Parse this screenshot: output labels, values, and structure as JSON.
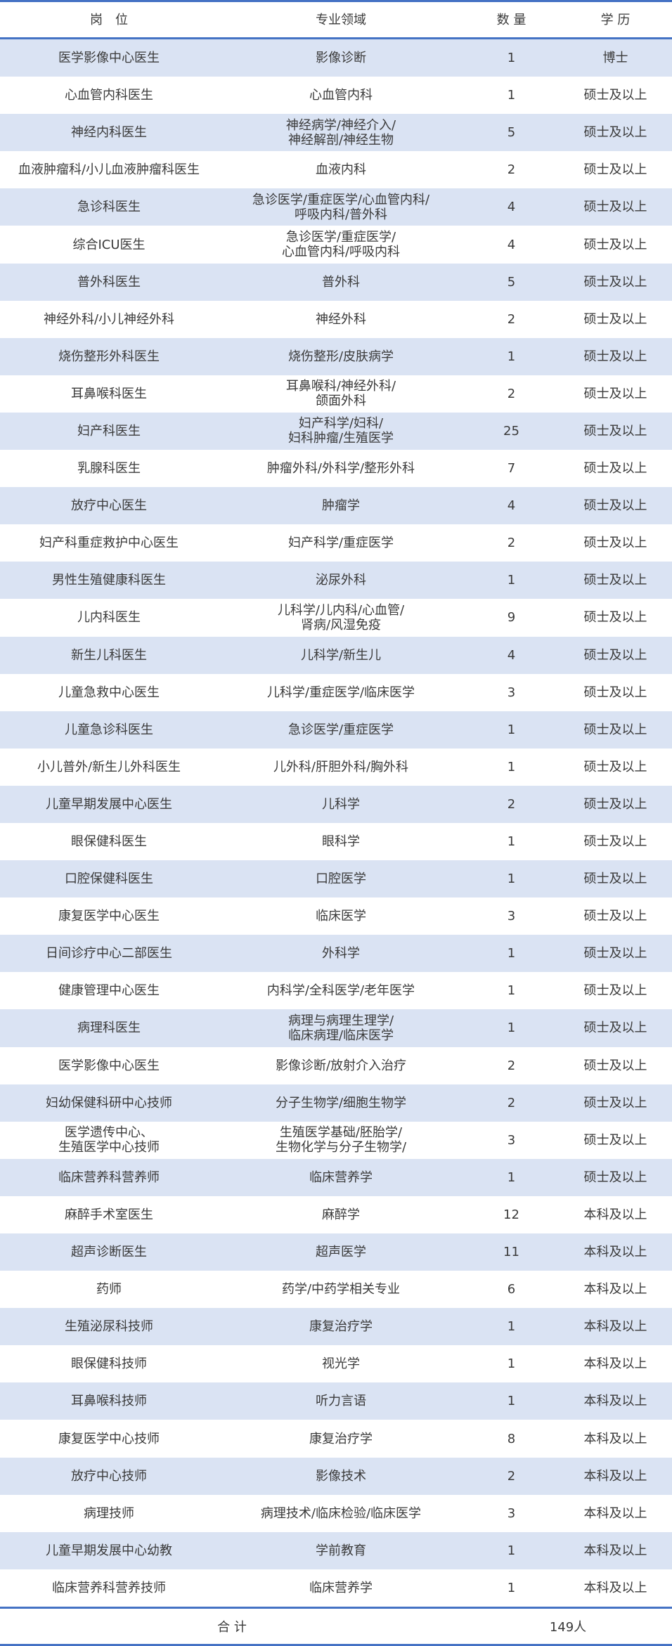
{
  "header": {
    "position": "岗　位",
    "field": "专业领域",
    "count": "数 量",
    "education": "学 历"
  },
  "rows": [
    [
      "医学影像中心医生",
      "影像诊断",
      "1",
      "博士"
    ],
    [
      "心血管内科医生",
      "心血管内科",
      "1",
      "硕士及以上"
    ],
    [
      "神经内科医生",
      "神经病学/神经介入/\n神经解剖/神经生物",
      "5",
      "硕士及以上"
    ],
    [
      "血液肿瘤科/小儿血液肿瘤科医生",
      "血液内科",
      "2",
      "硕士及以上"
    ],
    [
      "急诊科医生",
      "急诊医学/重症医学/心血管内科/\n呼吸内科/普外科",
      "4",
      "硕士及以上"
    ],
    [
      "综合ICU医生",
      "急诊医学/重症医学/\n心血管内科/呼吸内科",
      "4",
      "硕士及以上"
    ],
    [
      "普外科医生",
      "普外科",
      "5",
      "硕士及以上"
    ],
    [
      "神经外科/小儿神经外科",
      "神经外科",
      "2",
      "硕士及以上"
    ],
    [
      "烧伤整形外科医生",
      "烧伤整形/皮肤病学",
      "1",
      "硕士及以上"
    ],
    [
      "耳鼻喉科医生",
      "耳鼻喉科/神经外科/\n颌面外科",
      "2",
      "硕士及以上"
    ],
    [
      "妇产科医生",
      "妇产科学/妇科/\n妇科肿瘤/生殖医学",
      "25",
      "硕士及以上"
    ],
    [
      "乳腺科医生",
      "肿瘤外科/外科学/整形外科",
      "7",
      "硕士及以上"
    ],
    [
      "放疗中心医生",
      "肿瘤学",
      "4",
      "硕士及以上"
    ],
    [
      "妇产科重症救护中心医生",
      "妇产科学/重症医学",
      "2",
      "硕士及以上"
    ],
    [
      "男性生殖健康科医生",
      "泌尿外科",
      "1",
      "硕士及以上"
    ],
    [
      "儿内科医生",
      "儿科学/儿内科/心血管/\n肾病/风湿免疫",
      "9",
      "硕士及以上"
    ],
    [
      "新生儿科医生",
      "儿科学/新生儿",
      "4",
      "硕士及以上"
    ],
    [
      "儿童急救中心医生",
      "儿科学/重症医学/临床医学",
      "3",
      "硕士及以上"
    ],
    [
      "儿童急诊科医生",
      "急诊医学/重症医学",
      "1",
      "硕士及以上"
    ],
    [
      "小儿普外/新生儿外科医生",
      "儿外科/肝胆外科/胸外科",
      "1",
      "硕士及以上"
    ],
    [
      "儿童早期发展中心医生",
      "儿科学",
      "2",
      "硕士及以上"
    ],
    [
      "眼保健科医生",
      "眼科学",
      "1",
      "硕士及以上"
    ],
    [
      "口腔保健科医生",
      "口腔医学",
      "1",
      "硕士及以上"
    ],
    [
      "康复医学中心医生",
      "临床医学",
      "3",
      "硕士及以上"
    ],
    [
      "日间诊疗中心二部医生",
      "外科学",
      "1",
      "硕士及以上"
    ],
    [
      "健康管理中心医生",
      "内科学/全科医学/老年医学",
      "1",
      "硕士及以上"
    ],
    [
      "病理科医生",
      "病理与病理生理学/\n临床病理/临床医学",
      "1",
      "硕士及以上"
    ],
    [
      "医学影像中心医生",
      "影像诊断/放射介入治疗",
      "2",
      "硕士及以上"
    ],
    [
      "妇幼保健科研中心技师",
      "分子生物学/细胞生物学",
      "2",
      "硕士及以上"
    ],
    [
      "医学遗传中心、\n生殖医学中心技师",
      "生殖医学基础/胚胎学/\n生物化学与分子生物学/",
      "3",
      "硕士及以上"
    ],
    [
      "临床营养科营养师",
      "临床营养学",
      "1",
      "硕士及以上"
    ],
    [
      "麻醉手术室医生",
      "麻醉学",
      "12",
      "本科及以上"
    ],
    [
      "超声诊断医生",
      "超声医学",
      "11",
      "本科及以上"
    ],
    [
      "药师",
      "药学/中药学相关专业",
      "6",
      "本科及以上"
    ],
    [
      "生殖泌尿科技师",
      "康复治疗学",
      "1",
      "本科及以上"
    ],
    [
      "眼保健科技师",
      "视光学",
      "1",
      "本科及以上"
    ],
    [
      "耳鼻喉科技师",
      "听力言语",
      "1",
      "本科及以上"
    ],
    [
      "康复医学中心技师",
      "康复治疗学",
      "8",
      "本科及以上"
    ],
    [
      "放疗中心技师",
      "影像技术",
      "2",
      "本科及以上"
    ],
    [
      "病理技师",
      "病理技术/临床检验/临床医学",
      "3",
      "本科及以上"
    ],
    [
      "儿童早期发展中心幼教",
      "学前教育",
      "1",
      "本科及以上"
    ],
    [
      "临床营养科营养技师",
      "临床营养学",
      "1",
      "本科及以上"
    ]
  ],
  "footer": {
    "label": "合 计",
    "total": "149人"
  },
  "colors": {
    "rule": "#4472c4",
    "alt_row": "#dae3f3"
  }
}
